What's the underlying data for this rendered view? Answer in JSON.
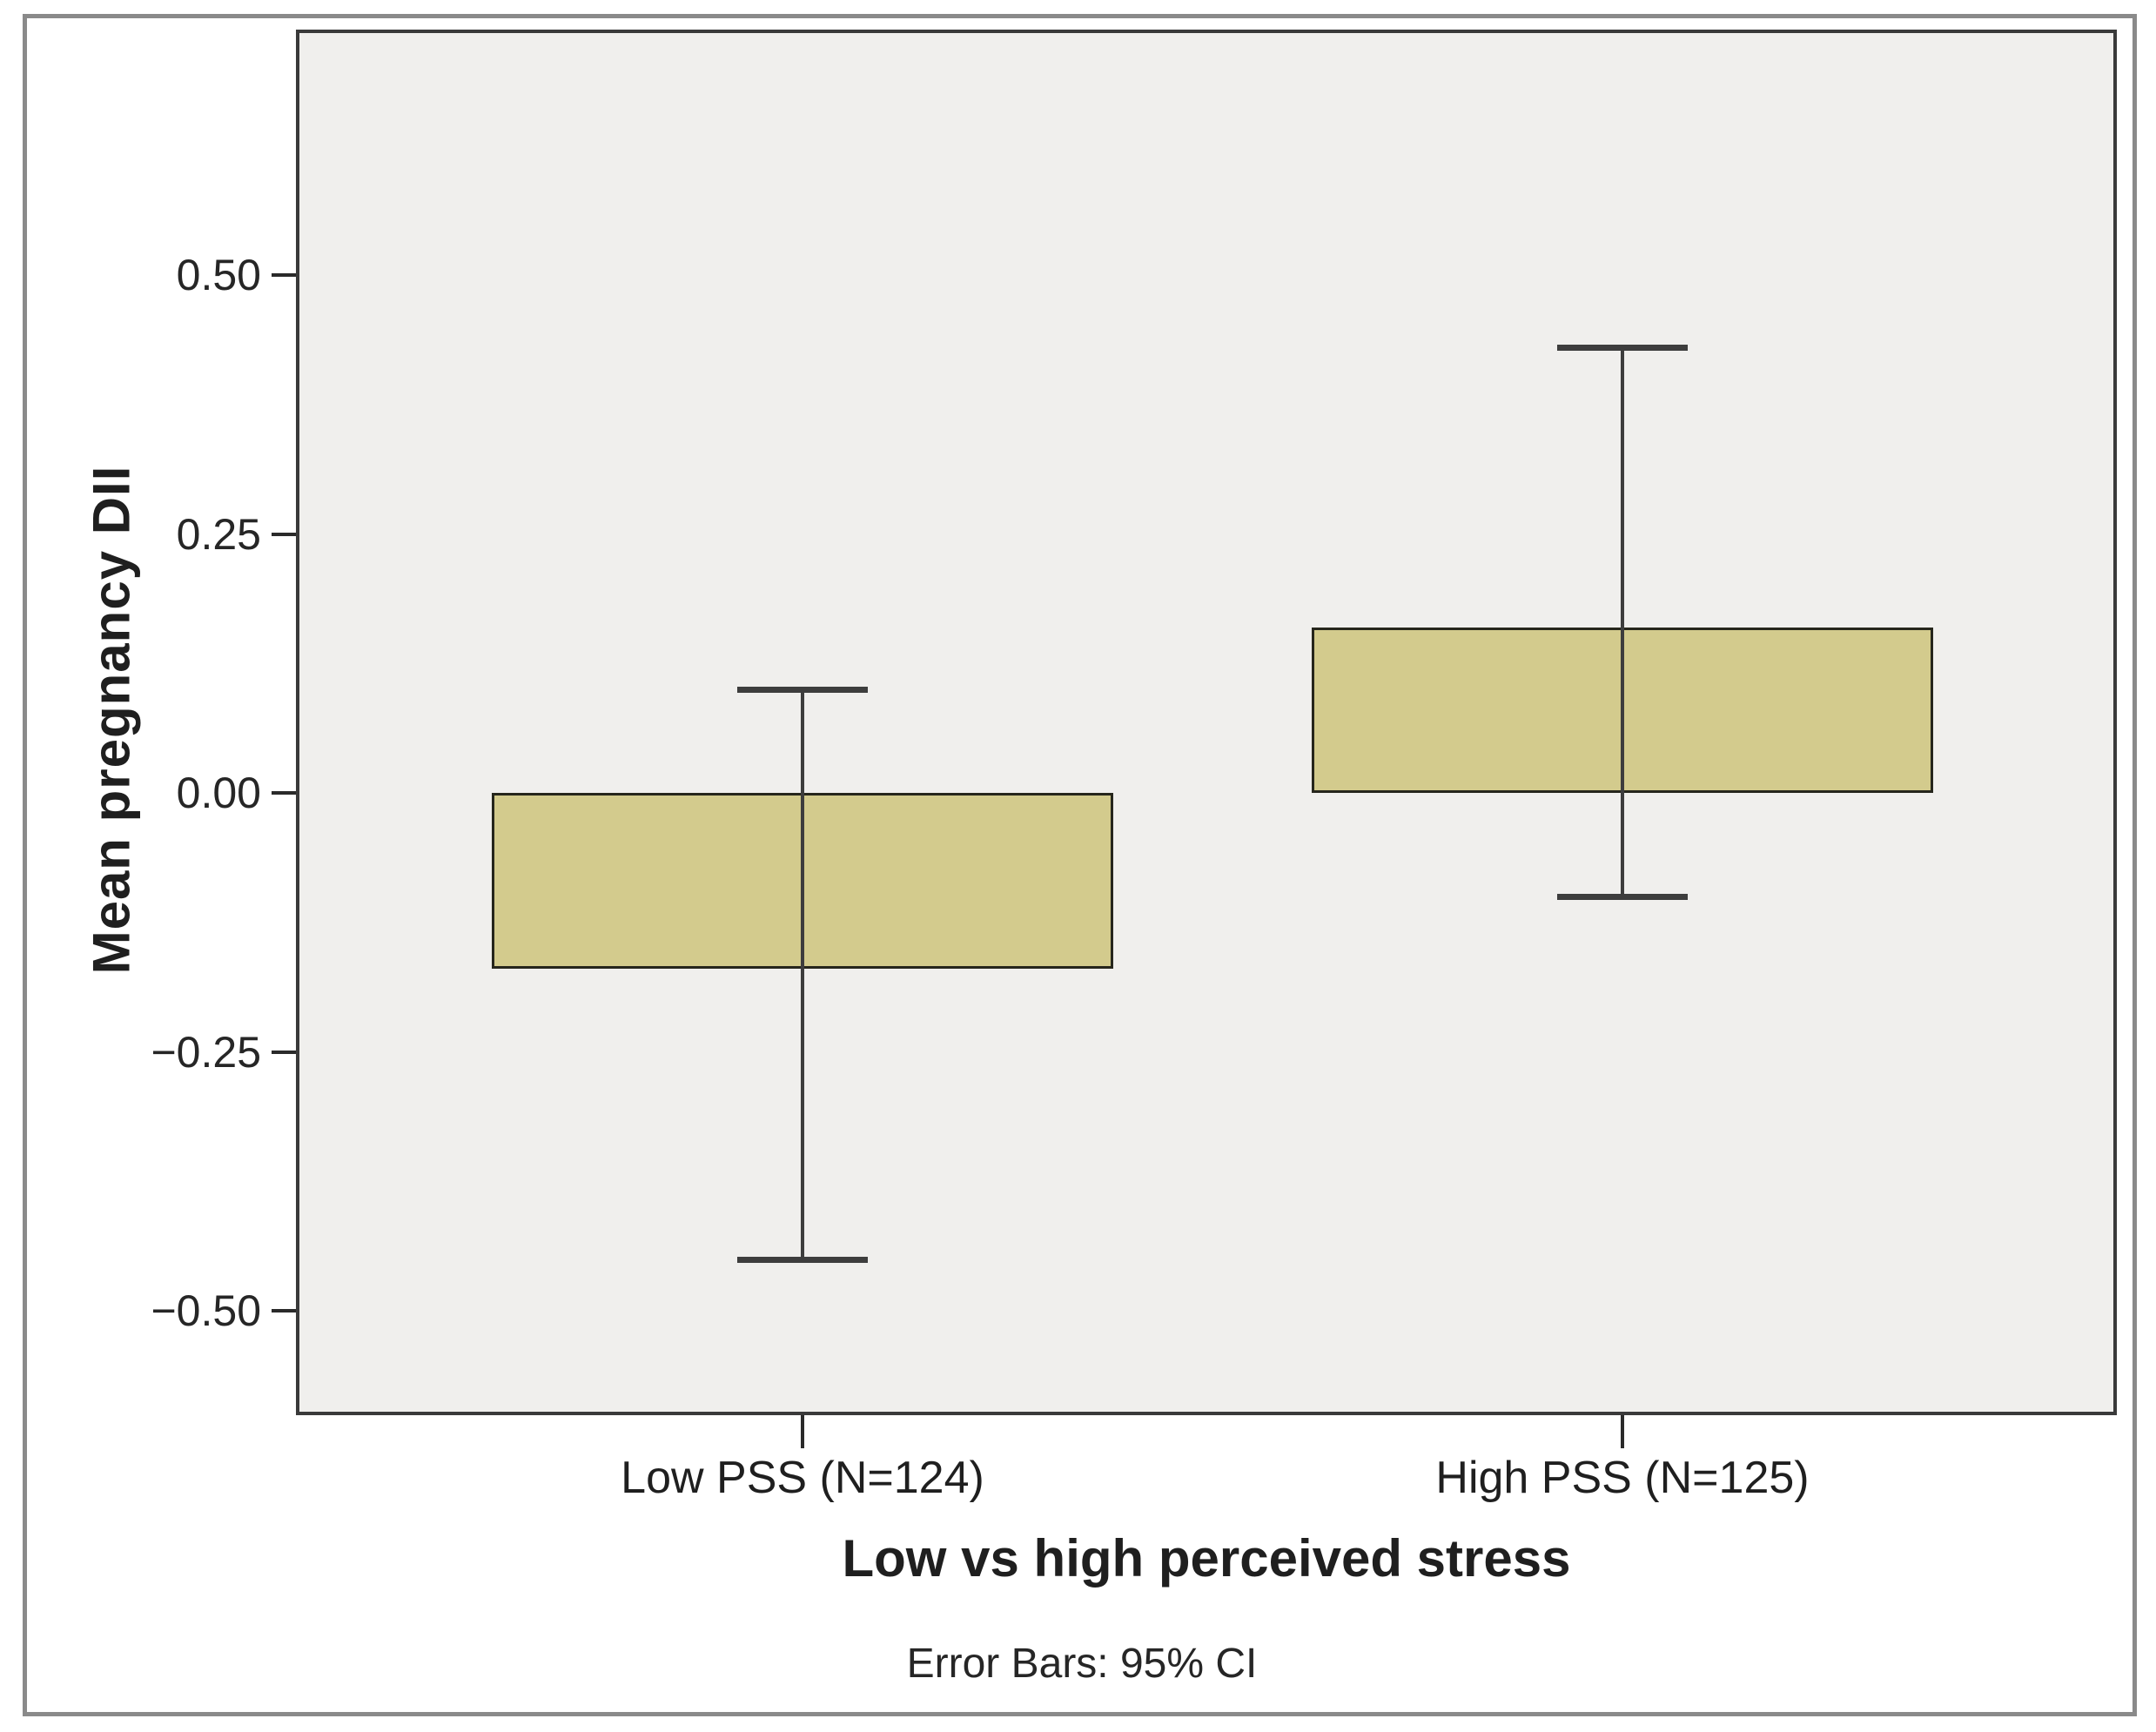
{
  "chart_data": {
    "type": "bar",
    "title": "",
    "xlabel": "Low vs high perceived stress",
    "ylabel": "Mean pregnancy DII",
    "footnote": "Error Bars: 95% CI",
    "categories": [
      "Low PSS (N=124)",
      "High PSS (N=125)"
    ],
    "series": [
      {
        "name": "Mean pregnancy DII",
        "values": [
          -0.17,
          0.16
        ],
        "ci_low": [
          -0.45,
          -0.1
        ],
        "ci_high": [
          0.1,
          0.43
        ]
      }
    ],
    "error_bar_type": "95% CI",
    "baseline": 0,
    "yticks": [
      {
        "label": "0.50",
        "value": 0.5
      },
      {
        "label": "0.25",
        "value": 0.25
      },
      {
        "label": "0.00",
        "value": 0.0
      },
      {
        "label": "−0.25",
        "value": -0.25
      },
      {
        "label": "−0.50",
        "value": -0.5
      }
    ],
    "ylim": [
      -0.6,
      0.735
    ],
    "grid": false,
    "legend": false,
    "colors": {
      "bar_fill": "#d3cb8d",
      "bar_border": "#26261c",
      "plot_background": "#f0efed",
      "plot_border": "#3a3a3a",
      "error_bar": "#3d3d3d",
      "frame_border": "#8a8a8a",
      "text": "#1f1f1f"
    }
  }
}
